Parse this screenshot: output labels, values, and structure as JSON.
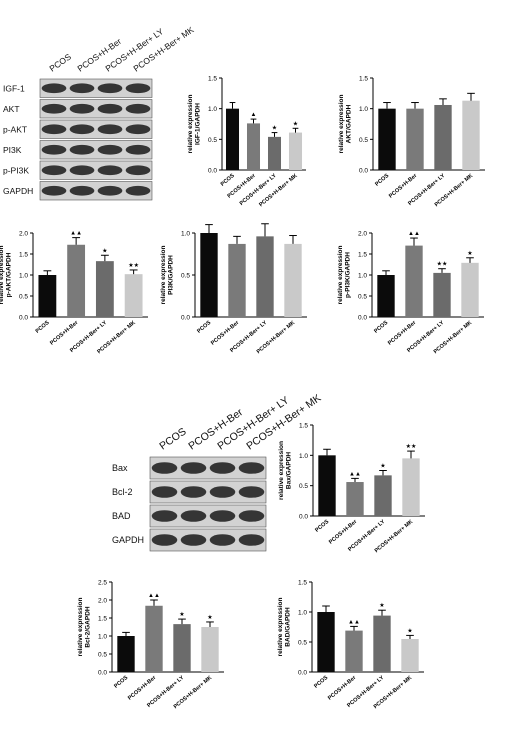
{
  "colors": {
    "PCOS": "#0b0b0b",
    "PCOS+H-Ber": "#7a7a7a",
    "PCOS+H-Ber+ LY": "#6b6b6b",
    "PCOS+H-Ber+ MK": "#c9c9c9",
    "blot_band": "#1a1a1a",
    "blot_background": "#d2d2d2"
  },
  "blots": [
    {
      "lanes": [
        "PCOS",
        "PCOS+H-Ber",
        "PCOS+H-Ber+ LY",
        "PCOS+H-Ber+ MK"
      ],
      "rows": [
        "IGF-1",
        "AKT",
        "p-AKT",
        "PI3K",
        "p-PI3K",
        "GAPDH"
      ]
    },
    {
      "lanes": [
        "PCOS",
        "PCOS+H-Ber",
        "PCOS+H-Ber+ LY",
        "PCOS+H-Ber+ MK"
      ],
      "rows": [
        "Bax",
        "Bcl-2",
        "BAD",
        "GAPDH"
      ]
    }
  ],
  "chart_data": [
    {
      "type": "bar",
      "categories": [
        "PCOS",
        "PCOS+H-Ber",
        "PCOS+H-Ber+ LY",
        "PCOS+H-Ber+ MK"
      ],
      "values": [
        1.0,
        0.76,
        0.54,
        0.61
      ],
      "errors": [
        0.1,
        0.07,
        0.07,
        0.07
      ],
      "annotations": [
        "",
        "▲",
        "★",
        "★"
      ],
      "ylabel": "relative expression\nIGF-1/GAPDH",
      "ylim": [
        0,
        1.5
      ],
      "yticks": [
        0.0,
        0.5,
        1.0,
        1.5
      ],
      "grid": false
    },
    {
      "type": "bar",
      "categories": [
        "PCOS",
        "PCOS+H-Ber",
        "PCOS+H-Ber+ LY",
        "PCOS+H-Ber+ MK"
      ],
      "values": [
        1.0,
        1.0,
        1.06,
        1.13
      ],
      "errors": [
        0.1,
        0.1,
        0.1,
        0.12
      ],
      "annotations": [
        "",
        "",
        "",
        ""
      ],
      "ylabel": "relative expression\nAKT/GAPDH",
      "ylim": [
        0,
        1.5
      ],
      "yticks": [
        0.0,
        0.5,
        1.0,
        1.5
      ],
      "grid": false
    },
    {
      "type": "bar",
      "categories": [
        "PCOS",
        "PCOS+H-Ber",
        "PCOS+H-Ber+ LY",
        "PCOS+H-Ber+ MK"
      ],
      "values": [
        1.0,
        1.72,
        1.33,
        1.02
      ],
      "errors": [
        0.1,
        0.17,
        0.14,
        0.1
      ],
      "annotations": [
        "",
        "▲▲",
        "★",
        "★★"
      ],
      "ylabel": "relative expression\np-AKT/GAPDH",
      "ylim": [
        0,
        2.0
      ],
      "yticks": [
        0.0,
        0.5,
        1.0,
        1.5,
        2.0
      ],
      "grid": false
    },
    {
      "type": "bar",
      "categories": [
        "PCOS",
        "PCOS+H-Ber",
        "PCOS+H-Ber+ LY",
        "PCOS+H-Ber+ MK"
      ],
      "values": [
        1.0,
        0.87,
        0.96,
        0.87
      ],
      "errors": [
        0.1,
        0.09,
        0.15,
        0.1
      ],
      "annotations": [
        "",
        "",
        "",
        ""
      ],
      "ylabel": "relative expression\nPI3K/GAPDH",
      "ylim": [
        0,
        1.0
      ],
      "yticks": [
        0.0,
        0.5,
        1.0
      ],
      "grid": false
    },
    {
      "type": "bar",
      "categories": [
        "PCOS",
        "PCOS+H-Ber",
        "PCOS+H-Ber+ LY",
        "PCOS+H-Ber+ MK"
      ],
      "values": [
        1.0,
        1.7,
        1.05,
        1.29
      ],
      "errors": [
        0.1,
        0.18,
        0.1,
        0.12
      ],
      "annotations": [
        "",
        "▲▲",
        "★★",
        "★"
      ],
      "ylabel": "relative expression\np-PI3K/GAPDH",
      "ylim": [
        0,
        2.0
      ],
      "yticks": [
        0.0,
        0.5,
        1.0,
        1.5,
        2.0
      ],
      "grid": false
    },
    {
      "type": "bar",
      "categories": [
        "PCOS",
        "PCOS+H-Ber",
        "PCOS+H-Ber+ LY",
        "PCOS+H-Ber+ MK"
      ],
      "values": [
        1.0,
        0.56,
        0.67,
        0.95
      ],
      "errors": [
        0.1,
        0.06,
        0.08,
        0.12
      ],
      "annotations": [
        "",
        "▲▲",
        "★",
        "★★"
      ],
      "ylabel": "relative expression\nBax/GAPDH",
      "ylim": [
        0,
        1.5
      ],
      "yticks": [
        0.0,
        0.5,
        1.0,
        1.5
      ],
      "grid": false
    },
    {
      "type": "bar",
      "categories": [
        "PCOS",
        "PCOS+H-Ber",
        "PCOS+H-Ber+ LY",
        "PCOS+H-Ber+ MK"
      ],
      "values": [
        1.0,
        1.84,
        1.33,
        1.25
      ],
      "errors": [
        0.1,
        0.16,
        0.14,
        0.14
      ],
      "annotations": [
        "",
        "▲▲",
        "★",
        "★"
      ],
      "ylabel": "relative expression\nBcl-2/GAPDH",
      "ylim": [
        0,
        2.5
      ],
      "yticks": [
        0.0,
        0.5,
        1.0,
        1.5,
        2.0,
        2.5
      ],
      "grid": false
    },
    {
      "type": "bar",
      "categories": [
        "PCOS",
        "PCOS+H-Ber",
        "PCOS+H-Ber+ LY",
        "PCOS+H-Ber+ MK"
      ],
      "values": [
        1.0,
        0.69,
        0.94,
        0.55
      ],
      "errors": [
        0.1,
        0.07,
        0.09,
        0.06
      ],
      "annotations": [
        "",
        "▲▲",
        "★",
        "★"
      ],
      "ylabel": "relative expression\nBAD/GAPDH",
      "ylim": [
        0,
        1.5
      ],
      "yticks": [
        0.0,
        0.5,
        1.0,
        1.5
      ],
      "grid": false
    }
  ]
}
